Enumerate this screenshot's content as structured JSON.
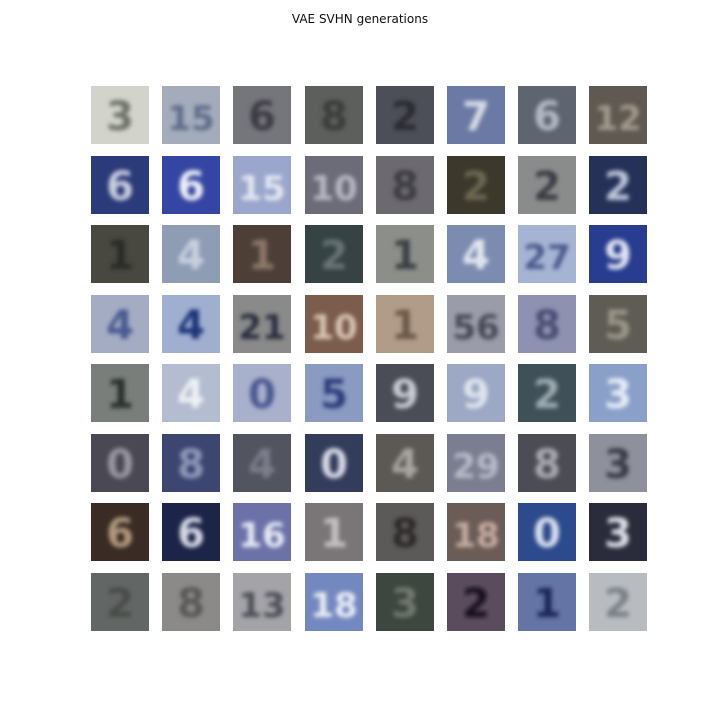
{
  "title": "VAE SVHN generations",
  "grid": {
    "rows": 8,
    "cols": 8,
    "tiles": [
      {
        "bg": "#d2d4cc",
        "fg": "#6f7368",
        "glyph": "3"
      },
      {
        "bg": "#a4acbc",
        "fg": "#5f6d88",
        "glyph": "15"
      },
      {
        "bg": "#75757c",
        "fg": "#3d3b45",
        "glyph": "6"
      },
      {
        "bg": "#5c5f5c",
        "fg": "#3a3c3a",
        "glyph": "8"
      },
      {
        "bg": "#4d4f58",
        "fg": "#2a2c33",
        "glyph": "2"
      },
      {
        "bg": "#6a7aa4",
        "fg": "#d8dce6",
        "glyph": "7"
      },
      {
        "bg": "#5e6470",
        "fg": "#b4bac4",
        "glyph": "6"
      },
      {
        "bg": "#5f5952",
        "fg": "#a39a8c",
        "glyph": "12"
      },
      {
        "bg": "#2b3a78",
        "fg": "#c7cde0",
        "glyph": "6"
      },
      {
        "bg": "#3546a2",
        "fg": "#eef0f8",
        "glyph": "6"
      },
      {
        "bg": "#9aa6cc",
        "fg": "#e4e8f2",
        "glyph": "15"
      },
      {
        "bg": "#6c6c78",
        "fg": "#b7b8c2",
        "glyph": "10"
      },
      {
        "bg": "#6c6a70",
        "fg": "#3d3c42",
        "glyph": "8"
      },
      {
        "bg": "#3c392c",
        "fg": "#6c6850",
        "glyph": "2"
      },
      {
        "bg": "#8a8c8c",
        "fg": "#3a3d44",
        "glyph": "2"
      },
      {
        "bg": "#263158",
        "fg": "#bcc4d8",
        "glyph": "2"
      },
      {
        "bg": "#484841",
        "fg": "#2c2c28",
        "glyph": "1"
      },
      {
        "bg": "#8e9cb4",
        "fg": "#c7d0de",
        "glyph": "4"
      },
      {
        "bg": "#4d3f38",
        "fg": "#8c7868",
        "glyph": "1"
      },
      {
        "bg": "#374244",
        "fg": "#667474",
        "glyph": "2"
      },
      {
        "bg": "#8c8e8a",
        "fg": "#3b3f44",
        "glyph": "1"
      },
      {
        "bg": "#7c8cb0",
        "fg": "#e2e6f0",
        "glyph": "4"
      },
      {
        "bg": "#a6b4d4",
        "fg": "#4a5a8c",
        "glyph": "27"
      },
      {
        "bg": "#283c90",
        "fg": "#e0e4f0",
        "glyph": "9"
      },
      {
        "bg": "#a4acc4",
        "fg": "#4a5a90",
        "glyph": "4"
      },
      {
        "bg": "#a0afd0",
        "fg": "#1e3478",
        "glyph": "4"
      },
      {
        "bg": "#8a8a8a",
        "fg": "#2a2e3c",
        "glyph": "21"
      },
      {
        "bg": "#7c5c4c",
        "fg": "#d8c4b4",
        "glyph": "10"
      },
      {
        "bg": "#b09c88",
        "fg": "#6a5848",
        "glyph": "1"
      },
      {
        "bg": "#9a9ca8",
        "fg": "#474a58",
        "glyph": "56"
      },
      {
        "bg": "#8e92b0",
        "fg": "#4c4e74",
        "glyph": "8"
      },
      {
        "bg": "#5e5c54",
        "fg": "#9a9488",
        "glyph": "5"
      },
      {
        "bg": "#7a7e7a",
        "fg": "#2c302e",
        "glyph": "1"
      },
      {
        "bg": "#b4bcd0",
        "fg": "#eef0f6",
        "glyph": "4"
      },
      {
        "bg": "#a8b0cc",
        "fg": "#4c5890",
        "glyph": "0"
      },
      {
        "bg": "#8a9ac0",
        "fg": "#2e3e7c",
        "glyph": "5"
      },
      {
        "bg": "#4a4c56",
        "fg": "#c8cad4",
        "glyph": "9"
      },
      {
        "bg": "#9ca8c4",
        "fg": "#dfe4ee",
        "glyph": "9"
      },
      {
        "bg": "#405058",
        "fg": "#9cacb0",
        "glyph": "2"
      },
      {
        "bg": "#8aa0c8",
        "fg": "#e4ecf6",
        "glyph": "3"
      },
      {
        "bg": "#4a4852",
        "fg": "#9896a2",
        "glyph": "0"
      },
      {
        "bg": "#3c4670",
        "fg": "#8c98b8",
        "glyph": "8"
      },
      {
        "bg": "#525460",
        "fg": "#7c7e8a",
        "glyph": "4"
      },
      {
        "bg": "#343c5c",
        "fg": "#d6dae6",
        "glyph": "0"
      },
      {
        "bg": "#5c5854",
        "fg": "#a8a4a0",
        "glyph": "4"
      },
      {
        "bg": "#7a7e90",
        "fg": "#b6bac8",
        "glyph": "29"
      },
      {
        "bg": "#4c4c54",
        "fg": "#a8a8b0",
        "glyph": "8"
      },
      {
        "bg": "#8e909c",
        "fg": "#3a3e4a",
        "glyph": "3"
      },
      {
        "bg": "#3a2c24",
        "fg": "#b0987c",
        "glyph": "6"
      },
      {
        "bg": "#1c2448",
        "fg": "#d6dae6",
        "glyph": "6"
      },
      {
        "bg": "#6c72a8",
        "fg": "#e8eaf4",
        "glyph": "16"
      },
      {
        "bg": "#7a7678",
        "fg": "#c4c0c0",
        "glyph": "1"
      },
      {
        "bg": "#5c5a58",
        "fg": "#2e2c2c",
        "glyph": "8"
      },
      {
        "bg": "#6c5c58",
        "fg": "#c4aca0",
        "glyph": "18"
      },
      {
        "bg": "#2c4a8c",
        "fg": "#d8e0f0",
        "glyph": "0"
      },
      {
        "bg": "#2a2c3c",
        "fg": "#dcdee6",
        "glyph": "3"
      },
      {
        "bg": "#626664",
        "fg": "#484c4a",
        "glyph": "2"
      },
      {
        "bg": "#8c8a88",
        "fg": "#5a5856",
        "glyph": "8"
      },
      {
        "bg": "#a4a4a8",
        "fg": "#4e5058",
        "glyph": "13"
      },
      {
        "bg": "#7488c0",
        "fg": "#eaeef6",
        "glyph": "18"
      },
      {
        "bg": "#3e4640",
        "fg": "#70786e",
        "glyph": "3"
      },
      {
        "bg": "#5a4c5c",
        "fg": "#14101c",
        "glyph": "2"
      },
      {
        "bg": "#6474a4",
        "fg": "#1c2858",
        "glyph": "1"
      },
      {
        "bg": "#b8bcc0",
        "fg": "#7c8088",
        "glyph": "2"
      }
    ]
  }
}
